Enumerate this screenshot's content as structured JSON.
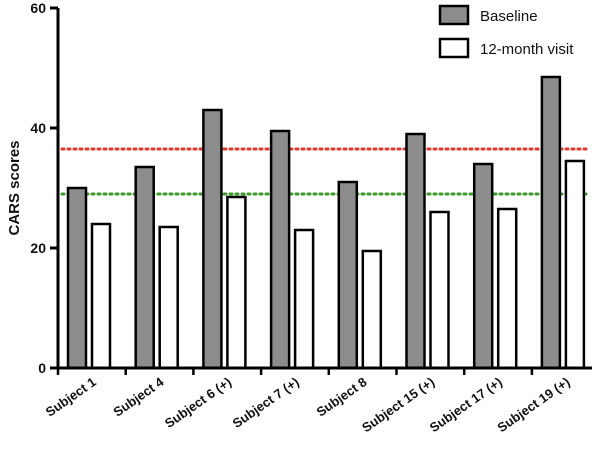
{
  "chart_data": {
    "type": "bar",
    "ylabel": "CARS scores",
    "xlabel": "",
    "ylim": [
      0,
      60
    ],
    "yticks": [
      0,
      20,
      40,
      60
    ],
    "grid": false,
    "legend_position": "top-right",
    "categories": [
      "Subject 1",
      "Subject 4",
      "Subject 6 (+)",
      "Subject 7 (+)",
      "Subject 8",
      "Subject 15 (+)",
      "Subject 17 (+)",
      "Subject 19 (+)"
    ],
    "series": [
      {
        "name": "Baseline",
        "color": "#8c8c8c",
        "values": [
          30,
          33.5,
          43,
          39.5,
          31,
          39,
          34,
          48.5
        ]
      },
      {
        "name": "12-month visit",
        "color": "#ffffff",
        "values": [
          24,
          23.5,
          28.5,
          23,
          19.5,
          26,
          26.5,
          34.5
        ]
      }
    ],
    "reference_lines": [
      {
        "name": "red-threshold",
        "value": 36.5,
        "color": "#e0362c"
      },
      {
        "name": "green-threshold",
        "value": 29,
        "color": "#3a9a2a"
      }
    ]
  }
}
